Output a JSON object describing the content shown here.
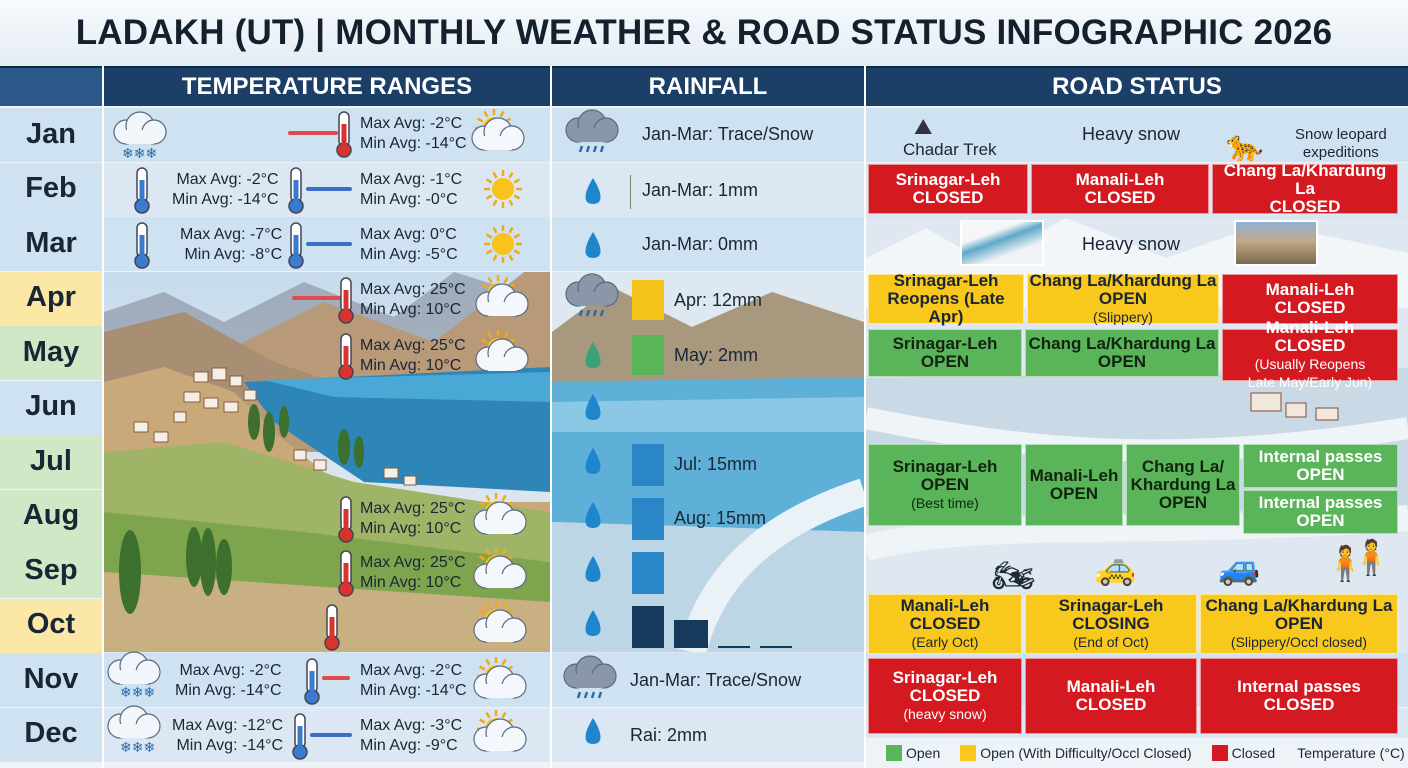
{
  "title": "LADAKH (UT) | MONTHLY WEATHER & ROAD STATUS INFOGRAPHIC 2026",
  "headers": {
    "temperature": "TEMPERATURE RANGES",
    "rainfall": "RAINFALL",
    "road": "ROAD STATUS"
  },
  "months": [
    "Jan",
    "Feb",
    "Mar",
    "Apr",
    "May",
    "Jun",
    "Jul",
    "Aug",
    "Sep",
    "Oct",
    "Nov",
    "Dec"
  ],
  "temperature": {
    "jan": {
      "a": "Max Avg: -2°C\nMin Avg: -14°C"
    },
    "feb": {
      "a": "Max Avg: -2°C\nMin Avg: -14°C",
      "b": "Max Avg: -1°C\nMin Avg: -0°C"
    },
    "mar": {
      "a": "Max Avg: -7°C\nMin Avg: -8°C",
      "b": "Max Avg: 0°C\nMin Avg: -5°C"
    },
    "apr": {
      "a": "Max Avg: 25°C\nMin Avg: 10°C"
    },
    "may": {
      "a": "Max Avg: 25°C\nMin Avg: 10°C"
    },
    "aug": {
      "a": "Max Avg: 25°C\nMin Avg: 10°C"
    },
    "sep": {
      "a": "Max Avg: 25°C\nMin Avg: 10°C"
    },
    "nov": {
      "a": "Max Avg: -2°C\nMin Avg: -14°C",
      "b": "Max Avg: -2°C\nMin Avg: -14°C"
    },
    "dec": {
      "a": "Max Avg: -12°C\nMin Avg: -14°C",
      "b": "Max Avg: -3°C\nMin Avg: -9°C"
    }
  },
  "rainfall": {
    "jan": "Jan-Mar: Trace/Snow",
    "feb": "Jan-Mar: 1mm",
    "mar": "Jan-Mar: 0mm",
    "apr": "Apr: 12mm",
    "may": "May: 2mm",
    "jul": "Jul: 15mm",
    "aug": "Aug: 15mm",
    "nov": "Jan-Mar: Trace/Snow",
    "dec": "Rai: 2mm"
  },
  "road": {
    "jan": {
      "chadar": "Chadar Trek",
      "snow": "Heavy snow",
      "leopard": "Snow leopard\nexpeditions"
    },
    "feb": [
      {
        "name": "Srinagar-Leh",
        "status": "CLOSED"
      },
      {
        "name": "Manali-Leh",
        "status": "CLOSED"
      },
      {
        "name": "Chang La/Khardung La",
        "status": "CLOSED"
      }
    ],
    "mar": {
      "snow": "Heavy snow"
    },
    "apr": [
      {
        "name": "Srinagar-Leh",
        "status": "Reopens (Late Apr)"
      },
      {
        "name": "Chang La/Khardung La",
        "status": "OPEN",
        "note": "(Slippery)"
      },
      {
        "name": "Manali-Leh",
        "status": "CLOSED"
      }
    ],
    "may": [
      {
        "name": "Srinagar-Leh",
        "status": "OPEN"
      },
      {
        "name": "Chang La/Khardung La",
        "status": "OPEN"
      },
      {
        "name": "Manali-Leh",
        "status": "CLOSED",
        "note": "(Usually Reopens",
        "note2": "Late May/Early Jun)"
      }
    ],
    "jul": [
      {
        "name": "Srinagar-Leh",
        "status": "OPEN",
        "note": "(Best time)"
      },
      {
        "name": "Manali-Leh",
        "status": "OPEN"
      },
      {
        "name": "Chang La/\nKhardung La",
        "status": "OPEN"
      },
      {
        "name": "Internal passes",
        "status": "OPEN"
      },
      {
        "name": "Internal passes",
        "status": "OPEN"
      }
    ],
    "oct": [
      {
        "name": "Manali-Leh",
        "status": "CLOSED",
        "note": "(Early Oct)"
      },
      {
        "name": "Srinagar-Leh",
        "status": "CLOSING",
        "note": "(End of Oct)"
      },
      {
        "name": "Chang La/Khardung La",
        "status": "OPEN",
        "note": "(Slippery/Occl closed)"
      }
    ],
    "nov": [
      {
        "name": "Srinagar-Leh",
        "status": "CLOSED",
        "note": "(heavy snow)"
      },
      {
        "name": "Manali-Leh",
        "status": "CLOSED"
      },
      {
        "name": "Internal passes",
        "status": "CLOSED"
      }
    ]
  },
  "legend": {
    "open": "Open",
    "difficulty": "Open (With Difficulty/Occl Closed)",
    "closed": "Closed",
    "temperature": "Temperature (°C)"
  },
  "colors": {
    "open": "#5ab55a",
    "difficulty": "#f8c81c",
    "closed": "#d41920",
    "header": "#1b3f66"
  }
}
